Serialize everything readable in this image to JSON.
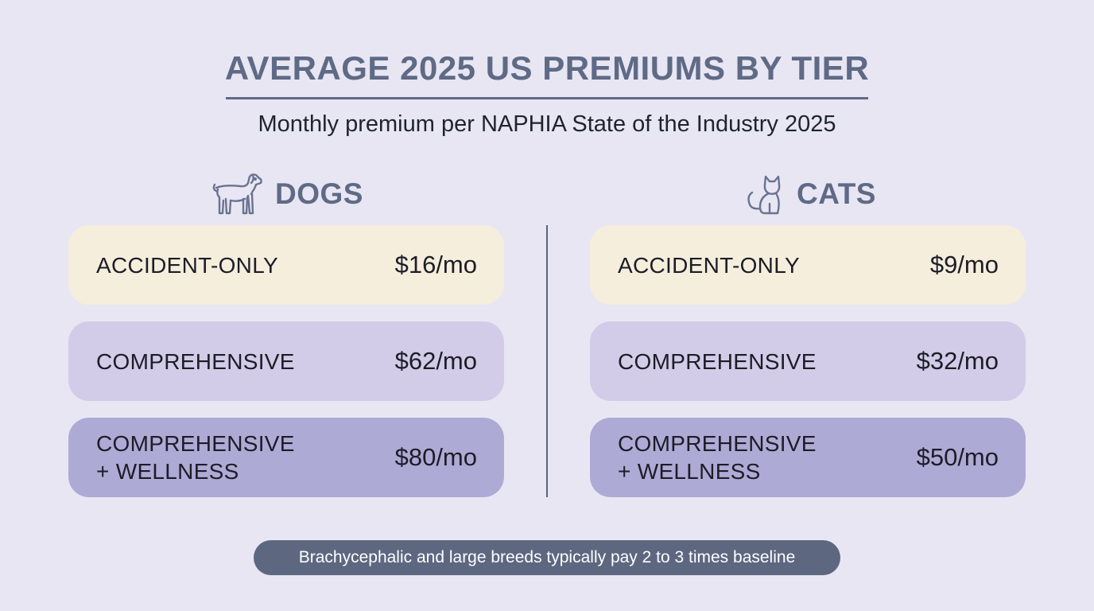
{
  "title": "AVERAGE 2025 US PREMIUMS BY TIER",
  "subtitle": "Monthly premium per NAPHIA State of the Industry 2025",
  "dogs": {
    "heading": "DOGS",
    "icon": "dog-icon",
    "tiers": [
      {
        "name": "ACCIDENT-ONLY",
        "price": "$16/mo"
      },
      {
        "name": "COMPREHENSIVE",
        "price": "$62/mo"
      },
      {
        "name_line1": "COMPREHENSIVE",
        "name_line2": "+ WELLNESS",
        "price": "$80/mo"
      }
    ]
  },
  "cats": {
    "heading": "CATS",
    "icon": "cat-icon",
    "tiers": [
      {
        "name": "ACCIDENT-ONLY",
        "price": "$9/mo"
      },
      {
        "name": "COMPREHENSIVE",
        "price": "$32/mo"
      },
      {
        "name_line1": "COMPREHENSIVE",
        "name_line2": "+ WELLNESS",
        "price": "$50/mo"
      }
    ]
  },
  "footnote": "Brachycephalic and large breeds typically pay 2 to 3 times baseline",
  "colors": {
    "background": "#e8e6f3",
    "heading": "#5f6a86",
    "accident_only": "#f5eedd",
    "comprehensive": "#d2cce8",
    "comprehensive_wellness": "#aeaad6",
    "footnote_bg": "#5d6780"
  }
}
